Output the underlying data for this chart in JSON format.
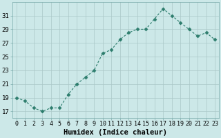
{
  "x": [
    0,
    1,
    2,
    3,
    4,
    5,
    6,
    7,
    8,
    9,
    10,
    11,
    12,
    13,
    14,
    15,
    16,
    17,
    18,
    19,
    20,
    21,
    22,
    23
  ],
  "y": [
    19.0,
    18.5,
    17.5,
    17.0,
    17.5,
    17.5,
    19.5,
    21.0,
    22.0,
    23.0,
    25.5,
    26.0,
    27.5,
    28.5,
    29.0,
    29.0,
    30.5,
    32.0,
    31.0,
    30.0,
    29.0,
    28.0,
    28.5,
    27.5
  ],
  "line_color": "#2d7d6d",
  "marker": "D",
  "markersize": 2.5,
  "bg_color": "#cce8e8",
  "grid_color": "#aac8c8",
  "xlabel": "Humidex (Indice chaleur)",
  "ylim": [
    16,
    33
  ],
  "xlim": [
    -0.5,
    23.5
  ],
  "yticks": [
    17,
    19,
    21,
    23,
    25,
    27,
    29,
    31
  ],
  "xlabel_fontsize": 7.5,
  "tick_fontsize": 6.5
}
